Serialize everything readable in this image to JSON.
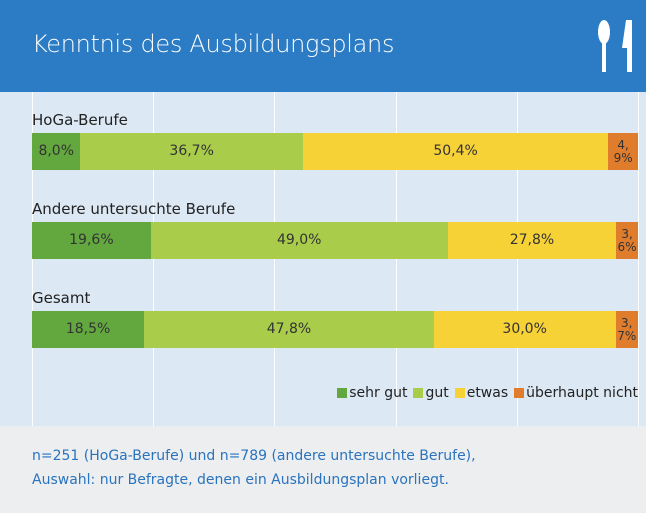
{
  "chart_data": {
    "type": "stacked-bar-horizontal",
    "title": "Kenntnis des Ausbildungsplans",
    "categories": [
      "HoGa-Berufe",
      "Andere untersuchte Berufe",
      "Gesamt"
    ],
    "series": [
      {
        "name": "sehr gut",
        "color": "#63a83e",
        "values": [
          8.0,
          19.6,
          18.5
        ],
        "value_labels": [
          "8,0%",
          "19,6%",
          "18,5%"
        ]
      },
      {
        "name": "gut",
        "color": "#a9cc4b",
        "values": [
          36.7,
          49.0,
          47.8
        ],
        "value_labels": [
          "36,7%",
          "49,0%",
          "47,8%"
        ]
      },
      {
        "name": "etwas",
        "color": "#f7d237",
        "values": [
          50.4,
          27.8,
          30.0
        ],
        "value_labels": [
          "50,4%",
          "27,8%",
          "30,0%"
        ]
      },
      {
        "name": "überhaupt nicht",
        "color": "#e07d2c",
        "values": [
          4.9,
          3.6,
          3.7
        ],
        "value_labels": [
          "4,9%",
          "3,6%",
          "3,7%"
        ]
      }
    ],
    "xlim": [
      0,
      100
    ],
    "xticks": [
      0,
      20,
      40,
      60,
      80,
      100
    ],
    "grid": true,
    "legend": "bottom-right",
    "notes": [
      "n=251 (HoGa-Berufe) und n=789 (andere untersuchte Berufe),",
      "Auswahl: nur Befragte, denen ein Ausbildungsplan vorliegt."
    ]
  }
}
